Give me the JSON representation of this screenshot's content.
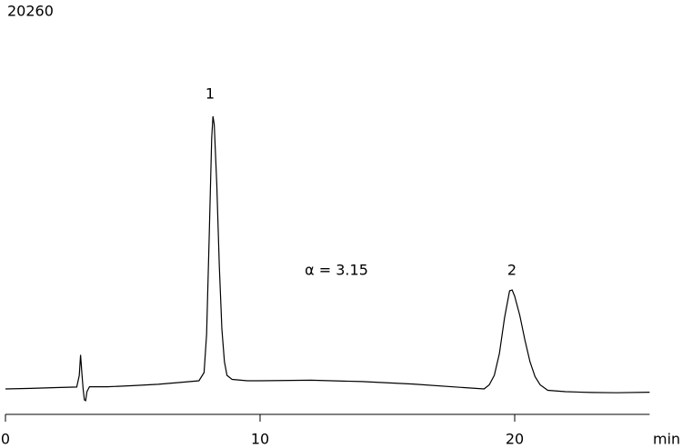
{
  "chart_data": {
    "type": "line",
    "title": "20260",
    "x_label": "min",
    "x": [
      0,
      1,
      2,
      2.8,
      2.9,
      2.95,
      3.0,
      3.05,
      3.1,
      3.15,
      3.2,
      3.3,
      4,
      5,
      6,
      7,
      7.6,
      7.8,
      7.9,
      8.0,
      8.1,
      8.15,
      8.2,
      8.3,
      8.4,
      8.5,
      8.6,
      8.7,
      8.9,
      9.5,
      10,
      12,
      14,
      16,
      18,
      18.8,
      19.0,
      19.2,
      19.4,
      19.6,
      19.8,
      19.9,
      20.0,
      20.2,
      20.4,
      20.6,
      20.8,
      21.0,
      21.3,
      22,
      23,
      24,
      25.3
    ],
    "values": [
      0,
      0.2,
      0.5,
      0.7,
      5,
      12.5,
      6,
      0,
      -4,
      -4.3,
      -1,
      0.8,
      0.8,
      1.2,
      1.7,
      2.5,
      3,
      6,
      20,
      55,
      92,
      100,
      97,
      75,
      45,
      22,
      10,
      5,
      3.5,
      3,
      3,
      3.2,
      2.7,
      1.8,
      0.5,
      0,
      1.5,
      5,
      13,
      26,
      36,
      36.3,
      34,
      27,
      18,
      10,
      4.5,
      1.5,
      -0.5,
      -1,
      -1.3,
      -1.4,
      -1.2
    ],
    "color": "#000000",
    "xlim": [
      0,
      25.3
    ],
    "xticks": [
      0,
      10,
      20
    ],
    "ylim": [
      -9,
      140
    ],
    "annotations": [
      "1",
      "2",
      "α = 3.15"
    ]
  }
}
